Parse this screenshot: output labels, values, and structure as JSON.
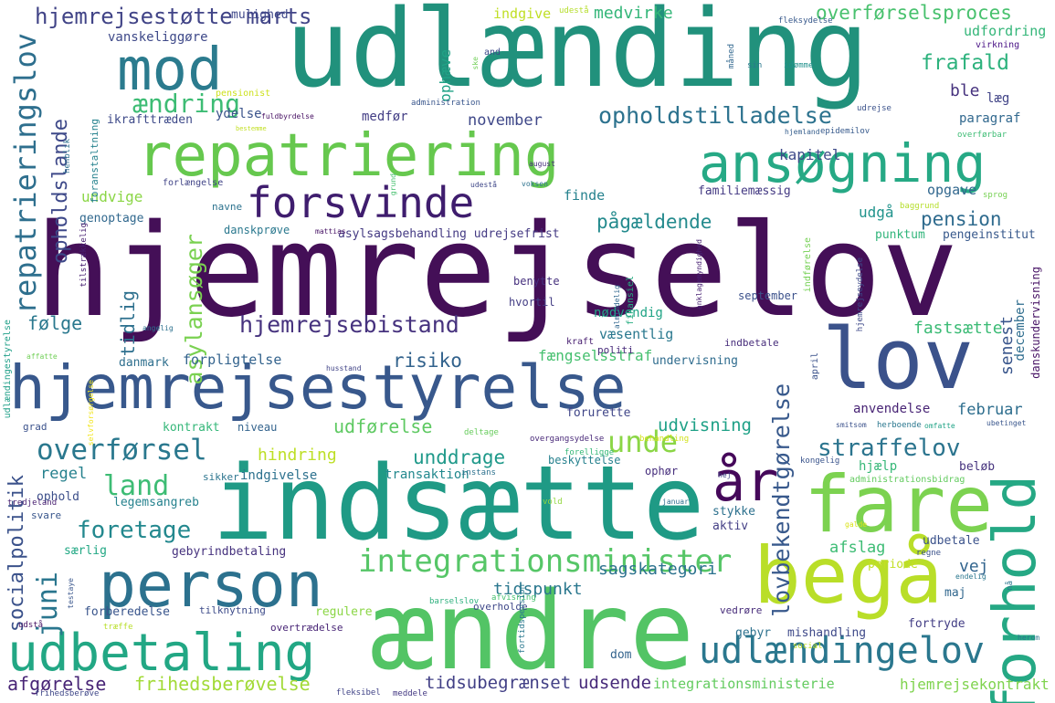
{
  "words": [
    {
      "text": "hjemrejselov",
      "color": "#440f57"
    },
    {
      "text": "udlænding",
      "color": "#21917c"
    },
    {
      "text": "indsætte",
      "color": "#1f9a85"
    },
    {
      "text": "repatriering",
      "color": "#66c84e"
    },
    {
      "text": "ansøgning",
      "color": "#26a985"
    },
    {
      "text": "mod",
      "color": "#2b7b8e"
    },
    {
      "text": "forsvinde",
      "color": "#3f1d6e"
    },
    {
      "text": "hjemrejsestyrelse",
      "color": "#38588c"
    },
    {
      "text": "lov",
      "color": "#3b528b"
    },
    {
      "text": "person",
      "color": "#2c718e"
    },
    {
      "text": "udbetaling",
      "color": "#22a784"
    },
    {
      "text": "ændre",
      "color": "#53c465"
    },
    {
      "text": "begå",
      "color": "#b9de28"
    },
    {
      "text": "fare",
      "color": "#7cd250"
    },
    {
      "text": "forhold",
      "color": "#25a884"
    },
    {
      "text": "år",
      "color": "#45085a"
    },
    {
      "text": "udlændingelov",
      "color": "#2a778e"
    },
    {
      "text": "integrationsminister",
      "color": "#56c667"
    },
    {
      "text": "repatrieringslov",
      "color": "#2e6f8e"
    },
    {
      "text": "hjemrejsestøtte marts",
      "color": "#414487"
    },
    {
      "text": "overførselsproces",
      "color": "#48c16e"
    },
    {
      "text": "opholdstilladelse",
      "color": "#2c728e"
    },
    {
      "text": "hjemrejsebistand",
      "color": "#46327e"
    },
    {
      "text": "straffelov",
      "color": "#2b748e"
    },
    {
      "text": "overførsel",
      "color": "#2a788e"
    },
    {
      "text": "foretage",
      "color": "#23888e"
    },
    {
      "text": "land",
      "color": "#3dbc74"
    },
    {
      "text": "ændring",
      "color": "#3dbc74"
    },
    {
      "text": "frafald",
      "color": "#2db27d"
    },
    {
      "text": "lovbekendtgørelse",
      "color": "#38598c"
    },
    {
      "text": "unde",
      "color": "#8bd646"
    },
    {
      "text": "juni",
      "color": "#2a768e"
    },
    {
      "text": "opholdslande",
      "color": "#3e4989"
    },
    {
      "text": "asylansøger",
      "color": "#7ad151"
    },
    {
      "text": "tidlig",
      "color": "#2d708e"
    },
    {
      "text": "socialpolitik",
      "color": "#3b528b"
    },
    {
      "text": "udsende",
      "color": "#472a7a"
    },
    {
      "text": "tidsubegrænset",
      "color": "#424086"
    },
    {
      "text": "frihedsberøvelse",
      "color": "#a2da37"
    },
    {
      "text": "afgørelse",
      "color": "#482576"
    },
    {
      "text": "integrationsministerie",
      "color": "#63cb5f"
    },
    {
      "text": "hjemrejsekontrakt",
      "color": "#7fd34e"
    },
    {
      "text": "pension",
      "color": "#2f6b8e"
    },
    {
      "text": "pågældende",
      "color": "#238a8d"
    },
    {
      "text": "medvirke",
      "color": "#34b679"
    },
    {
      "text": "udfordring",
      "color": "#34b679"
    },
    {
      "text": "følge",
      "color": "#2a788e"
    },
    {
      "text": "risiko",
      "color": "#33638d"
    },
    {
      "text": "unddrage",
      "color": "#1f998a"
    },
    {
      "text": "udførelse",
      "color": "#5ec962"
    },
    {
      "text": "udvisning",
      "color": "#1fa187"
    },
    {
      "text": "fængselsstraf",
      "color": "#46c06f"
    },
    {
      "text": "tidspunkt",
      "color": "#2a778e"
    },
    {
      "text": "sagskategori",
      "color": "#2c728e"
    },
    {
      "text": "fastsætte",
      "color": "#3bbb75"
    },
    {
      "text": "senest",
      "color": "#39568c"
    },
    {
      "text": "februar",
      "color": "#2e6e8e"
    },
    {
      "text": "vej",
      "color": "#32658e"
    },
    {
      "text": "afslag",
      "color": "#3dbc74"
    },
    {
      "text": "hindring",
      "color": "#bddf26"
    },
    {
      "text": "regel",
      "color": "#26818e"
    },
    {
      "text": "indgivelse",
      "color": "#2d718e"
    },
    {
      "text": "transaktion",
      "color": "#23898e"
    },
    {
      "text": "kapitel",
      "color": "#3e4a89"
    },
    {
      "text": "november",
      "color": "#3f4889"
    },
    {
      "text": "undvige",
      "color": "#8bd646"
    },
    {
      "text": "finde",
      "color": "#26828e"
    },
    {
      "text": "udgå",
      "color": "#20938c"
    },
    {
      "text": "opgave",
      "color": "#31678e"
    },
    {
      "text": "familiemæssig",
      "color": "#443a83"
    },
    {
      "text": "ble",
      "color": "#46327e"
    },
    {
      "text": "læg",
      "color": "#414487"
    },
    {
      "text": "paragraf",
      "color": "#31688e"
    },
    {
      "text": "indgive",
      "color": "#c0df25"
    },
    {
      "text": "mulighed",
      "color": "#3f4889"
    },
    {
      "text": "ophæve",
      "color": "#20a386"
    },
    {
      "text": "vanskeliggøre",
      "color": "#3e4989"
    },
    {
      "text": "ydelse",
      "color": "#3a538b"
    },
    {
      "text": "medfør",
      "color": "#433e85"
    },
    {
      "text": "ikrafttræden",
      "color": "#3e4a89"
    },
    {
      "text": "foranstaltning",
      "color": "#26828e"
    },
    {
      "text": "genoptage",
      "color": "#31688e"
    },
    {
      "text": "navne",
      "color": "#2c728e"
    },
    {
      "text": "danskprøve",
      "color": "#2a788e"
    },
    {
      "text": "asylsagsbehandling udrejsefrist",
      "color": "#443a83"
    },
    {
      "text": "punktum",
      "color": "#31b57b"
    },
    {
      "text": "pengeinstitut",
      "color": "#38598c"
    },
    {
      "text": "benytte",
      "color": "#46307e"
    },
    {
      "text": "hvortil",
      "color": "#433d84"
    },
    {
      "text": "september",
      "color": "#3b518b"
    },
    {
      "text": "december",
      "color": "#2e6d8e"
    },
    {
      "text": "danskundervisning",
      "color": "#471365"
    },
    {
      "text": "væsentlig",
      "color": "#2a788e"
    },
    {
      "text": "indbetale",
      "color": "#472d7b"
    },
    {
      "text": "politi",
      "color": "#472a7a"
    },
    {
      "text": "kraft",
      "color": "#481f71"
    },
    {
      "text": "nødvendig",
      "color": "#20a486"
    },
    {
      "text": "forpligtelse",
      "color": "#33638d"
    },
    {
      "text": "danmark",
      "color": "#2e6f8e"
    },
    {
      "text": "undervisning",
      "color": "#2f6c8e"
    },
    {
      "text": "anvendelse",
      "color": "#482475"
    },
    {
      "text": "grad",
      "color": "#3b528b"
    },
    {
      "text": "kontrakt",
      "color": "#35b779"
    },
    {
      "text": "niveau",
      "color": "#33638d"
    },
    {
      "text": "forurette",
      "color": "#404688"
    },
    {
      "text": "hjælp",
      "color": "#37b878"
    },
    {
      "text": "beløb",
      "color": "#46337e"
    },
    {
      "text": "ophør",
      "color": "#472f7d"
    },
    {
      "text": "beskyttelse",
      "color": "#26818e"
    },
    {
      "text": "sikker",
      "color": "#2b748e"
    },
    {
      "text": "ophold",
      "color": "#3c4f8a"
    },
    {
      "text": "legemsangreb",
      "color": "#26828e"
    },
    {
      "text": "svare",
      "color": "#39568c"
    },
    {
      "text": "tredjeland",
      "color": "#481f71"
    },
    {
      "text": "særlig",
      "color": "#22a884"
    },
    {
      "text": "gebyrindbetaling",
      "color": "#46327e"
    },
    {
      "text": "stykke",
      "color": "#2d718e"
    },
    {
      "text": "aktiv",
      "color": "#433e85"
    },
    {
      "text": "udbetale",
      "color": "#3b528b"
    },
    {
      "text": "regne",
      "color": "#3b528b"
    },
    {
      "text": "maj",
      "color": "#31678e"
    },
    {
      "text": "periode",
      "color": "#c2df23"
    },
    {
      "text": "forberedelse",
      "color": "#39558c"
    },
    {
      "text": "tilknytning",
      "color": "#3e4c8a"
    },
    {
      "text": "regulere",
      "color": "#8bd646"
    },
    {
      "text": "overtrædelse",
      "color": "#482576"
    },
    {
      "text": "gebyr",
      "color": "#2d718e"
    },
    {
      "text": "mishandling",
      "color": "#3e4989"
    },
    {
      "text": "fortryde",
      "color": "#433e85"
    },
    {
      "text": "vedrøre",
      "color": "#472c7a"
    },
    {
      "text": "dom",
      "color": "#33638d"
    },
    {
      "text": "overholde",
      "color": "#3f4889"
    },
    {
      "text": "afvisning",
      "color": "#46c06f"
    },
    {
      "text": "barselslov",
      "color": "#30b17f"
    },
    {
      "text": "social",
      "color": "#c2df23"
    },
    {
      "text": "fleksibel",
      "color": "#414487"
    },
    {
      "text": "meddele",
      "color": "#443983"
    },
    {
      "text": "frihedsberøve",
      "color": "#3f4788"
    },
    {
      "text": "udstå",
      "color": "#471164"
    },
    {
      "text": "træffe",
      "color": "#b8de29"
    },
    {
      "text": "testaye",
      "color": "#39568c"
    },
    {
      "text": "endelig",
      "color": "#2a778e"
    },
    {
      "text": "herom",
      "color": "#2a788e"
    },
    {
      "text": "nå",
      "color": "#2a768e"
    },
    {
      "text": "galde",
      "color": "#dae319"
    },
    {
      "text": "januar",
      "color": "#2e6e8e"
    },
    {
      "text": "hej",
      "color": "#404688"
    },
    {
      "text": "kongelig",
      "color": "#3a548c"
    },
    {
      "text": "overgangsydelse",
      "color": "#482878"
    },
    {
      "text": "deltage",
      "color": "#67cc5c"
    },
    {
      "text": "forelligge",
      "color": "#37b878"
    },
    {
      "text": "behandling",
      "color": "#d2e21b"
    },
    {
      "text": "vold",
      "color": "#93d741"
    },
    {
      "text": "instans",
      "color": "#2d718e"
    },
    {
      "text": "administrationsbidrag",
      "color": "#63cb5f"
    },
    {
      "text": "ubetinget",
      "color": "#39568c"
    },
    {
      "text": "herboende",
      "color": "#2a778e"
    },
    {
      "text": "omfatte",
      "color": "#20a386"
    },
    {
      "text": "smitsom",
      "color": "#3b518b"
    },
    {
      "text": "udlændingestyrelse",
      "color": "#1f9f88"
    },
    {
      "text": "selvforsørgelse",
      "color": "#f1e51d"
    },
    {
      "text": "husstand",
      "color": "#414487"
    },
    {
      "text": "affatte",
      "color": "#71cf57"
    },
    {
      "text": "finansiel",
      "color": "#27ad81"
    },
    {
      "text": "almindelig",
      "color": "#31678e"
    },
    {
      "text": "anklagemyndighed",
      "color": "#482173"
    },
    {
      "text": "hjemrejseydelse",
      "color": "#3e4989"
    },
    {
      "text": "indførelse",
      "color": "#75d054"
    },
    {
      "text": "april",
      "color": "#3b528b"
    },
    {
      "text": "tilstrækkelig",
      "color": "#482071"
    },
    {
      "text": "henblik",
      "color": "#2d708e"
    },
    {
      "text": "forlængelse",
      "color": "#414487"
    },
    {
      "text": "pensionist",
      "color": "#cde11d"
    },
    {
      "text": "bestemme",
      "color": "#c2df23"
    },
    {
      "text": "administration",
      "color": "#39568c"
    },
    {
      "text": "fuldbyrdelse",
      "color": "#471063"
    },
    {
      "text": "udrejse",
      "color": "#3b528b"
    },
    {
      "text": "epidemilov",
      "color": "#375a8c"
    },
    {
      "text": "hjemland",
      "color": "#355e8d"
    },
    {
      "text": "overførbar",
      "color": "#3dbc74"
    },
    {
      "text": "måned",
      "color": "#31678e"
    },
    {
      "text": "virkning",
      "color": "#4a1486"
    },
    {
      "text": "sin",
      "color": "#2a788e"
    },
    {
      "text": "idømme",
      "color": "#21918c"
    },
    {
      "text": "and",
      "color": "#3e4989"
    },
    {
      "text": "ske",
      "color": "#71cf57"
    },
    {
      "text": "fleksydelse",
      "color": "#38598c"
    },
    {
      "text": "udestå",
      "color": "#b5de2b"
    },
    {
      "text": "august",
      "color": "#472d7b"
    },
    {
      "text": "voksen",
      "color": "#2c728e"
    },
    {
      "text": "udestå",
      "color": "#3f4788"
    },
    {
      "text": "grund",
      "color": "#46c06f"
    },
    {
      "text": "mattias",
      "color": "#471365"
    },
    {
      "text": "angelig",
      "color": "#2d718e"
    },
    {
      "text": "baggrund",
      "color": "#b5de2b"
    },
    {
      "text": "sprog",
      "color": "#77d153"
    },
    {
      "text": "fortidspension",
      "color": "#2a788e"
    }
  ]
}
